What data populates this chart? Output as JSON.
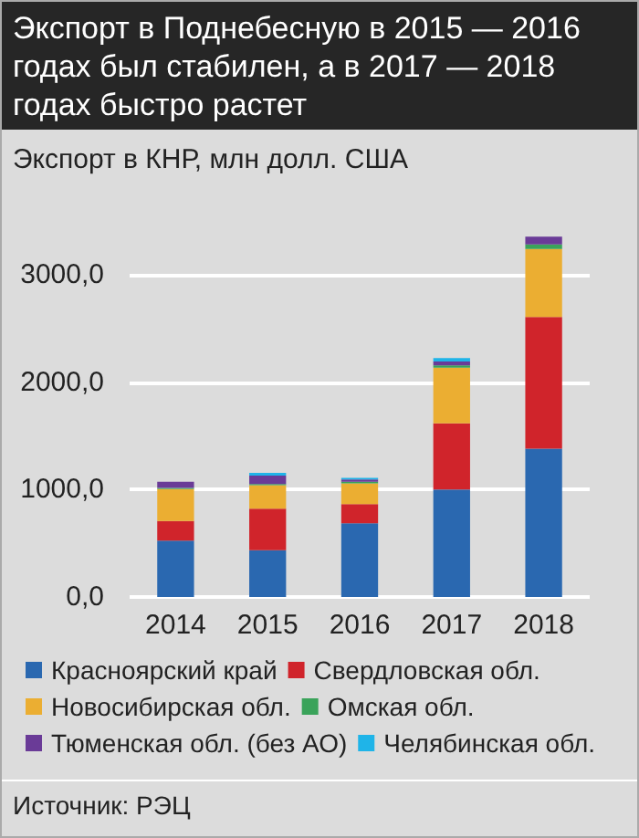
{
  "chart_data": {
    "type": "bar",
    "title": "Экспорт в Поднебесную в 2015 — 2016 годах был стабилен, а в 2017 — 2018 годах быстро растет",
    "subtitle": "Экспорт в КНР, млн долл. США",
    "annotations": [
      "Источник: РЭЦ"
    ],
    "categories": [
      "2014",
      "2015",
      "2016",
      "2017",
      "2018"
    ],
    "stacked": true,
    "series": [
      {
        "name": "Красноярский край",
        "color": "#2a68b0",
        "values": [
          524,
          435,
          686,
          1000,
          1382
        ]
      },
      {
        "name": "Свердловская обл.",
        "color": "#d0242b",
        "values": [
          183,
          387,
          178,
          618,
          1225
        ]
      },
      {
        "name": "Новосибирская обл.",
        "color": "#ebae32",
        "values": [
          298,
          220,
          194,
          518,
          634
        ]
      },
      {
        "name": "Омская обл.",
        "color": "#3aa35a",
        "values": [
          10,
          10,
          15,
          21,
          42
        ]
      },
      {
        "name": "Тюменская обл. (без АО)",
        "color": "#6a3b97",
        "values": [
          58,
          79,
          21,
          37,
          73
        ]
      },
      {
        "name": "Челябинская обл.",
        "color": "#1fb4e8",
        "values": [
          0,
          26,
          16,
          31,
          0
        ]
      }
    ],
    "ylim": [
      0,
      3400
    ],
    "yticks": [
      {
        "value": 0,
        "label": "0,0"
      },
      {
        "value": 1000,
        "label": "1000,0"
      },
      {
        "value": 2000,
        "label": "2000,0"
      },
      {
        "value": 3000,
        "label": "3000,0"
      }
    ],
    "grid": "y",
    "legend": "bottom"
  }
}
